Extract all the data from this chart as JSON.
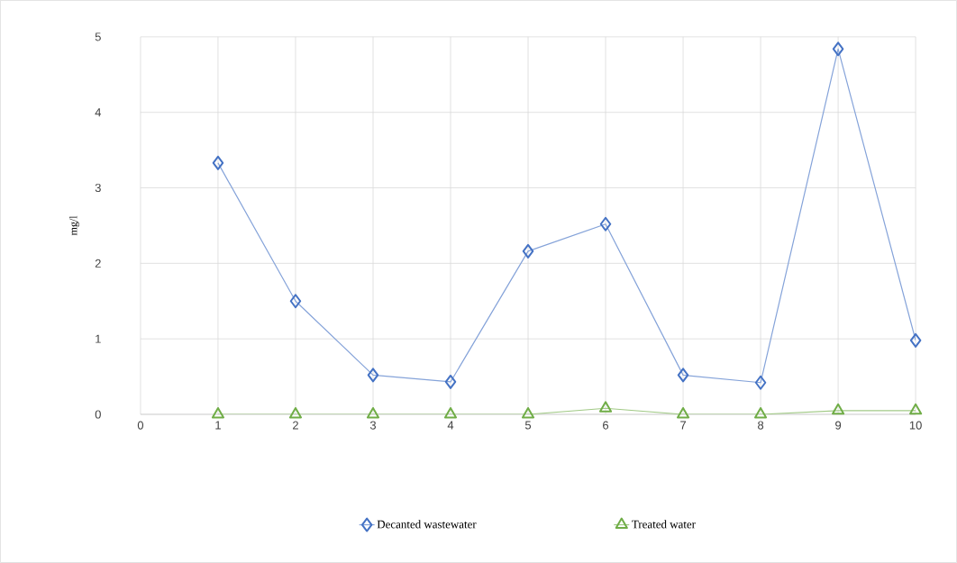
{
  "chart_data": {
    "type": "line",
    "ylabel": "mg/l",
    "x": [
      1,
      2,
      3,
      4,
      5,
      6,
      7,
      8,
      9,
      10
    ],
    "series": [
      {
        "name": "Decanted wastewater",
        "color": "#4472c4",
        "marker": "diamond",
        "values": [
          3.33,
          1.5,
          0.52,
          0.43,
          2.16,
          2.52,
          0.52,
          0.42,
          4.84,
          0.98
        ]
      },
      {
        "name": "Treated water",
        "color": "#70ad47",
        "marker": "triangle",
        "values": [
          0.0,
          0.0,
          0.0,
          0.0,
          0.0,
          0.08,
          0.0,
          0.0,
          0.05,
          0.05
        ]
      }
    ],
    "xlim": [
      0,
      10
    ],
    "xticks": [
      0,
      1,
      2,
      3,
      4,
      5,
      6,
      7,
      8,
      9,
      10
    ],
    "ylim": [
      0,
      5
    ],
    "yticks": [
      0,
      1,
      2,
      3,
      4,
      5
    ],
    "grid": true,
    "legend": "bottom"
  }
}
